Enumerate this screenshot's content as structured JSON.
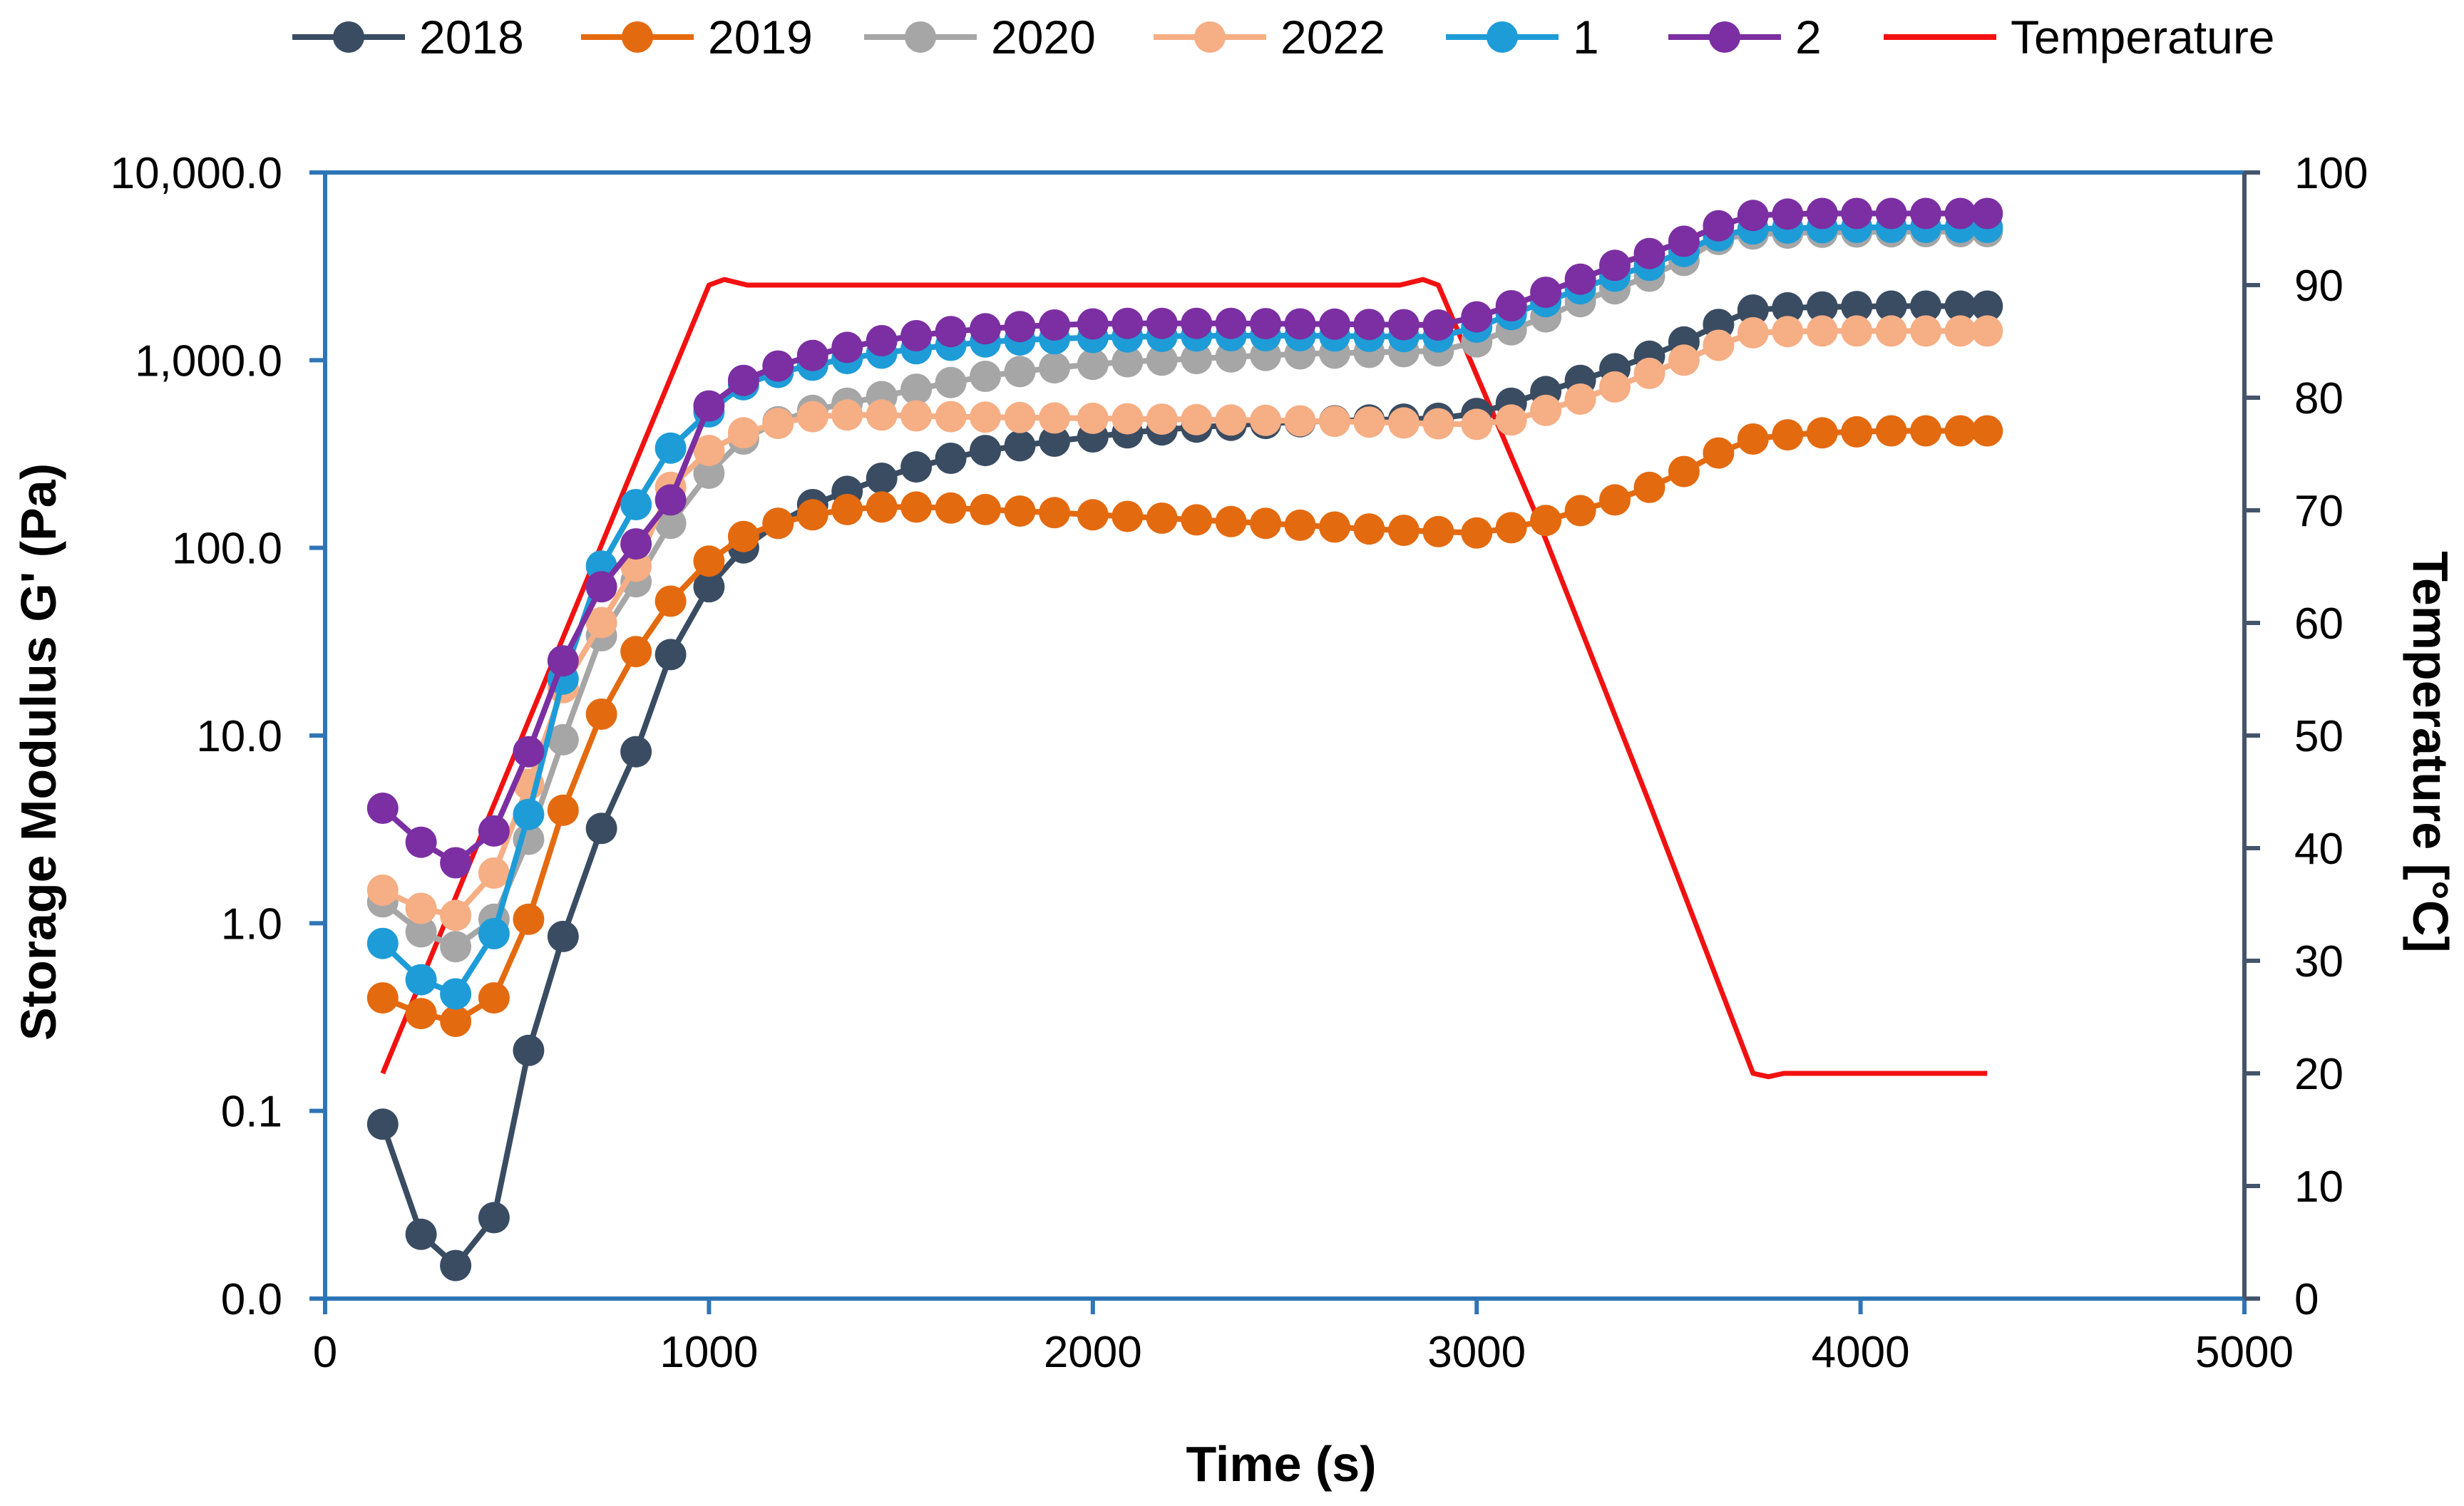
{
  "chart_data": {
    "type": "line",
    "title": "",
    "xlabel": "Time (s)",
    "ylabel": "Storage Modulus G' (Pa)",
    "y2label": "Temperature [°C]",
    "xlim": [
      0,
      5000
    ],
    "ylim_log10": [
      -2,
      4
    ],
    "y2lim": [
      0,
      100
    ],
    "legend_position": "top",
    "x_ticks": [
      "0",
      "1000",
      "2000",
      "3000",
      "4000",
      "5000"
    ],
    "y_ticks": [
      "0.0",
      "0.1",
      "1.0",
      "10.0",
      "100.0",
      "1,000.0",
      "10,000.0"
    ],
    "y2_ticks": [
      "0",
      "10",
      "20",
      "30",
      "40",
      "50",
      "60",
      "70",
      "80",
      "90",
      "100"
    ],
    "x": [
      150,
      250,
      340,
      440,
      530,
      620,
      720,
      810,
      900,
      1000,
      1090,
      1180,
      1270,
      1360,
      1450,
      1540,
      1630,
      1720,
      1810,
      1900,
      2000,
      2090,
      2180,
      2270,
      2360,
      2450,
      2540,
      2630,
      2720,
      2810,
      2900,
      3000,
      3090,
      3180,
      3270,
      3360,
      3450,
      3540,
      3630,
      3720,
      3810,
      3900,
      3990,
      4080,
      4170,
      4260,
      4330
    ],
    "series": [
      {
        "name": "2018",
        "color": "#3a4c62",
        "values": [
          0.085,
          0.022,
          0.015,
          0.027,
          0.21,
          0.85,
          3.2,
          8.2,
          27,
          62,
          100,
          135,
          170,
          200,
          235,
          270,
          300,
          330,
          350,
          370,
          390,
          410,
          425,
          440,
          450,
          460,
          470,
          475,
          480,
          485,
          490,
          520,
          590,
          680,
          780,
          900,
          1050,
          1250,
          1550,
          1850,
          1900,
          1920,
          1930,
          1940,
          1940,
          1940,
          1940
        ]
      },
      {
        "name": "2019",
        "color": "#e46a0f",
        "values": [
          0.4,
          0.33,
          0.3,
          0.4,
          1.05,
          4.0,
          13,
          28,
          52,
          85,
          115,
          135,
          150,
          160,
          165,
          165,
          163,
          160,
          157,
          154,
          150,
          147,
          144,
          141,
          138,
          135,
          132,
          129,
          126,
          124,
          122,
          120,
          128,
          140,
          158,
          180,
          210,
          255,
          320,
          380,
          400,
          410,
          415,
          420,
          420,
          420,
          420
        ]
      },
      {
        "name": "2020",
        "color": "#a6a6a6",
        "values": [
          1.3,
          0.9,
          0.75,
          1.05,
          2.8,
          9.5,
          34,
          66,
          135,
          250,
          380,
          470,
          540,
          590,
          640,
          700,
          760,
          820,
          870,
          910,
          950,
          980,
          1000,
          1020,
          1040,
          1060,
          1080,
          1090,
          1100,
          1110,
          1120,
          1250,
          1450,
          1700,
          2050,
          2400,
          2800,
          3400,
          4400,
          4700,
          4750,
          4800,
          4820,
          4830,
          4840,
          4840,
          4840
        ]
      },
      {
        "name": "2022",
        "color": "#f6ae84",
        "values": [
          1.5,
          1.2,
          1.1,
          1.85,
          5.5,
          18,
          40,
          80,
          210,
          330,
          410,
          460,
          500,
          510,
          510,
          505,
          500,
          497,
          495,
          492,
          490,
          487,
          485,
          482,
          480,
          478,
          475,
          472,
          468,
          463,
          458,
          455,
          480,
          540,
          620,
          720,
          850,
          1000,
          1200,
          1400,
          1420,
          1430,
          1430,
          1430,
          1430,
          1430,
          1430
        ]
      },
      {
        "name": "1",
        "color": "#1e9cd8",
        "values": [
          0.78,
          0.5,
          0.42,
          0.88,
          3.8,
          20,
          80,
          170,
          340,
          530,
          740,
          860,
          940,
          1020,
          1090,
          1150,
          1200,
          1250,
          1280,
          1300,
          1320,
          1330,
          1340,
          1345,
          1350,
          1350,
          1350,
          1345,
          1340,
          1335,
          1330,
          1500,
          1750,
          2050,
          2400,
          2800,
          3200,
          3800,
          4600,
          5000,
          5050,
          5080,
          5100,
          5100,
          5100,
          5100,
          5100
        ]
      },
      {
        "name": "2",
        "color": "#7b2fa2",
        "values": [
          4.1,
          2.7,
          2.1,
          3.1,
          8.2,
          25,
          62,
          105,
          180,
          570,
          780,
          930,
          1060,
          1170,
          1270,
          1350,
          1420,
          1470,
          1510,
          1540,
          1560,
          1570,
          1570,
          1570,
          1570,
          1565,
          1560,
          1555,
          1550,
          1545,
          1540,
          1700,
          1950,
          2300,
          2700,
          3200,
          3700,
          4300,
          5200,
          5900,
          6000,
          6050,
          6050,
          6050,
          6050,
          6050,
          6050
        ]
      }
    ],
    "temperature": {
      "name": "Temperature",
      "color": "#f21111",
      "x": [
        150,
        1000,
        1040,
        1100,
        2800,
        2860,
        2900,
        2950,
        3150,
        3450,
        3720,
        3760,
        3800,
        4330
      ],
      "values": [
        20,
        90,
        90.5,
        90,
        90,
        90.5,
        90,
        86,
        70,
        44,
        20,
        19.7,
        20,
        20
      ]
    }
  }
}
